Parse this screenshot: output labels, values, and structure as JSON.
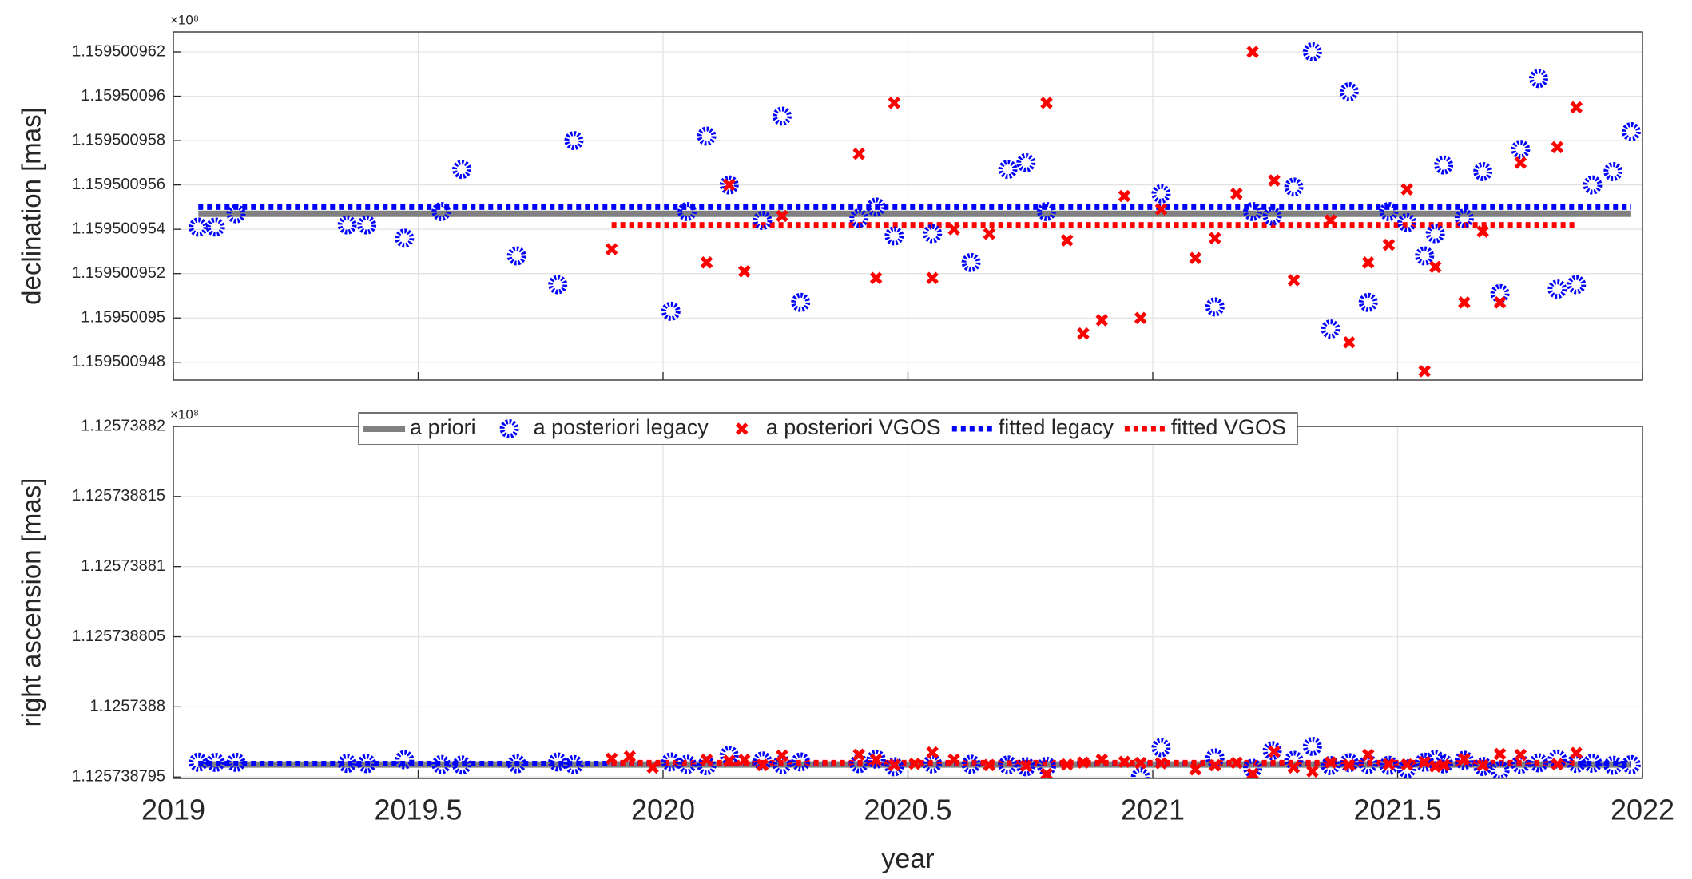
{
  "chart_data": [
    {
      "type": "scatter",
      "ylabel": "declination [mas]",
      "y_multiplier": "×10⁸",
      "xlim": [
        2019,
        2022
      ],
      "xticks": [
        2019,
        2019.5,
        2020,
        2020.5,
        2021,
        2021.5,
        2022
      ],
      "xtick_labels": false,
      "ylim": [
        1.1595009472,
        1.1595009629
      ],
      "yticks": [
        1.159500948,
        1.15950095,
        1.159500952,
        1.159500954,
        1.159500956,
        1.159500958,
        1.15950096,
        1.159500962
      ],
      "grid": true,
      "series": [
        {
          "color": "#808080",
          "mode": "line",
          "line_style": "solid",
          "x": [
            2019.051,
            2021.977
          ],
          "values": [
            1.1595009547,
            1.1595009547
          ]
        },
        {
          "color": "#0000ff",
          "mode": "markers",
          "marker": "asterisk",
          "x": [
            2019.051,
            2019.086,
            2019.128,
            2019.355,
            2019.395,
            2019.472,
            2019.547,
            2019.589,
            2019.701,
            2019.785,
            2019.818,
            2020.016,
            2020.049,
            2020.089,
            2020.135,
            2020.203,
            2020.243,
            2020.281,
            2020.4,
            2020.435,
            2020.472,
            2020.55,
            2020.629,
            2020.704,
            2020.741,
            2020.783,
            2021.017,
            2021.127,
            2021.204,
            2021.244,
            2021.288,
            2021.326,
            2021.363,
            2021.401,
            2021.44,
            2021.482,
            2021.519,
            2021.555,
            2021.577,
            2021.594,
            2021.636,
            2021.674,
            2021.709,
            2021.751,
            2021.788,
            2021.826,
            2021.865,
            2021.898,
            2021.94,
            2021.977
          ],
          "values": [
            1.1595009541,
            1.1595009541,
            1.1595009547,
            1.1595009542,
            1.1595009542,
            1.1595009536,
            1.1595009548,
            1.1595009567,
            1.1595009528,
            1.1595009515,
            1.159500958,
            1.1595009503,
            1.1595009548,
            1.1595009582,
            1.159500956,
            1.1595009544,
            1.1595009591,
            1.1595009507,
            1.1595009545,
            1.159500955,
            1.1595009537,
            1.1595009538,
            1.1595009525,
            1.1595009567,
            1.159500957,
            1.1595009548,
            1.1595009556,
            1.1595009505,
            1.1595009548,
            1.1595009546,
            1.1595009559,
            1.159500962,
            1.1595009495,
            1.1595009602,
            1.1595009507,
            1.1595009548,
            1.1595009543,
            1.1595009528,
            1.1595009538,
            1.1595009569,
            1.1595009545,
            1.1595009566,
            1.1595009511,
            1.1595009576,
            1.1595009608,
            1.1595009513,
            1.1595009515,
            1.159500956,
            1.1595009566,
            1.1595009584
          ]
        },
        {
          "color": "#ff0000",
          "mode": "markers",
          "marker": "x",
          "x": [
            2019.895,
            2020.089,
            2020.135,
            2020.166,
            2020.243,
            2020.4,
            2020.435,
            2020.472,
            2020.55,
            2020.594,
            2020.666,
            2020.783,
            2020.825,
            2020.858,
            2020.896,
            2020.942,
            2020.975,
            2021.017,
            2021.087,
            2021.127,
            2021.171,
            2021.204,
            2021.248,
            2021.288,
            2021.363,
            2021.401,
            2021.44,
            2021.482,
            2021.519,
            2021.555,
            2021.577,
            2021.636,
            2021.674,
            2021.709,
            2021.751,
            2021.826,
            2021.865
          ],
          "values": [
            1.1595009531,
            1.1595009525,
            1.159500956,
            1.1595009521,
            1.1595009546,
            1.1595009574,
            1.1595009518,
            1.1595009597,
            1.1595009518,
            1.159500954,
            1.1595009538,
            1.1595009597,
            1.1595009535,
            1.1595009493,
            1.1595009499,
            1.1595009555,
            1.15950095,
            1.1595009549,
            1.1595009527,
            1.1595009536,
            1.1595009556,
            1.159500962,
            1.1595009562,
            1.1595009517,
            1.1595009544,
            1.1595009489,
            1.1595009525,
            1.1595009533,
            1.1595009558,
            1.1595009476,
            1.1595009523,
            1.1595009507,
            1.1595009539,
            1.1595009507,
            1.159500957,
            1.1595009577,
            1.1595009595
          ]
        },
        {
          "color": "#0000ff",
          "mode": "line",
          "line_style": "dotted",
          "x": [
            2019.051,
            2021.977
          ],
          "values": [
            1.159500955,
            1.159500955
          ]
        },
        {
          "color": "#ff0000",
          "mode": "line",
          "line_style": "dotted",
          "x": [
            2019.895,
            2021.865
          ],
          "values": [
            1.1595009542,
            1.1595009542
          ]
        }
      ]
    },
    {
      "type": "scatter",
      "ylabel": "right ascension [mas]",
      "xlabel": "year",
      "y_multiplier": "×10⁸",
      "xlim": [
        2019,
        2022
      ],
      "xticks": [
        2019,
        2019.5,
        2020,
        2020.5,
        2021,
        2021.5,
        2022
      ],
      "xtick_labels": true,
      "ylim": [
        1.1257387949,
        1.12573882
      ],
      "yticks": [
        1.125738795,
        1.1257388,
        1.125738805,
        1.12573881,
        1.125738815,
        1.12573882
      ],
      "grid": true,
      "legend": "north",
      "series": [
        {
          "name": "a priori",
          "color": "#808080",
          "mode": "line",
          "line_style": "solid",
          "x": [
            2019.051,
            2021.977
          ],
          "values": [
            1.12573879589,
            1.12573879589
          ]
        },
        {
          "name": "a posteriori legacy",
          "color": "#0000ff",
          "mode": "markers",
          "marker": "asterisk",
          "x": [
            2019.051,
            2019.086,
            2019.128,
            2019.355,
            2019.395,
            2019.472,
            2019.547,
            2019.589,
            2019.701,
            2019.785,
            2019.818,
            2020.016,
            2020.049,
            2020.089,
            2020.135,
            2020.203,
            2020.243,
            2020.281,
            2020.4,
            2020.435,
            2020.472,
            2020.55,
            2020.629,
            2020.704,
            2020.741,
            2020.783,
            2020.975,
            2021.017,
            2021.127,
            2021.204,
            2021.244,
            2021.288,
            2021.326,
            2021.363,
            2021.401,
            2021.44,
            2021.482,
            2021.519,
            2021.555,
            2021.577,
            2021.594,
            2021.636,
            2021.674,
            2021.709,
            2021.751,
            2021.788,
            2021.826,
            2021.865,
            2021.898,
            2021.94,
            2021.977
          ],
          "values": [
            1.12573879605,
            1.12573879604,
            1.12573879604,
            1.12573879597,
            1.12573879595,
            1.12573879623,
            1.12573879589,
            1.12573879585,
            1.12573879594,
            1.12573879607,
            1.12573879588,
            1.12573879607,
            1.1257387959,
            1.1257387958,
            1.12573879655,
            1.12573879614,
            1.12573879589,
            1.12573879607,
            1.12573879595,
            1.12573879627,
            1.12573879573,
            1.12573879594,
            1.12573879591,
            1.12573879585,
            1.12573879573,
            1.12573879576,
            1.125738795,
            1.12573879709,
            1.12573879636,
            1.12573879562,
            1.12573879688,
            1.12573879619,
            1.12573879718,
            1.12573879581,
            1.12573879602,
            1.12573879591,
            1.12573879583,
            1.12573879559,
            1.12573879605,
            1.12573879624,
            1.12573879594,
            1.12573879619,
            1.12573879575,
            1.12573879546,
            1.1257387959,
            1.12573879601,
            1.12573879628,
            1.12573879597,
            1.12573879598,
            1.12573879583,
            1.12573879588
          ]
        },
        {
          "name": "a posteriori VGOS",
          "color": "#ff0000",
          "mode": "markers",
          "marker": "x",
          "x": [
            2019.895,
            2019.932,
            2019.979,
            2020.089,
            2020.135,
            2020.166,
            2020.203,
            2020.243,
            2020.4,
            2020.435,
            2020.472,
            2020.514,
            2020.55,
            2020.594,
            2020.666,
            2020.741,
            2020.783,
            2020.825,
            2020.858,
            2020.896,
            2020.942,
            2020.975,
            2021.017,
            2021.087,
            2021.127,
            2021.171,
            2021.204,
            2021.248,
            2021.288,
            2021.326,
            2021.363,
            2021.401,
            2021.44,
            2021.482,
            2021.519,
            2021.555,
            2021.577,
            2021.594,
            2021.636,
            2021.674,
            2021.709,
            2021.751,
            2021.826,
            2021.865
          ],
          "values": [
            1.1257387963,
            1.12573879646,
            1.12573879568,
            1.12573879622,
            1.12573879615,
            1.12573879622,
            1.12573879585,
            1.12573879652,
            1.12573879659,
            1.12573879623,
            1.12573879585,
            1.12573879594,
            1.12573879675,
            1.12573879623,
            1.12573879585,
            1.12573879579,
            1.12573879521,
            1.12573879589,
            1.12573879603,
            1.12573879623,
            1.12573879608,
            1.125738796,
            1.12573879598,
            1.12573879554,
            1.12573879583,
            1.12573879601,
            1.12573879522,
            1.1257387968,
            1.12573879568,
            1.1257387954,
            1.12573879603,
            1.12573879585,
            1.12573879657,
            1.12573879591,
            1.12573879589,
            1.12573879606,
            1.12573879575,
            1.12573879585,
            1.12573879627,
            1.12573879583,
            1.12573879664,
            1.12573879657,
            1.12573879591,
            1.12573879671
          ]
        },
        {
          "name": "fitted legacy",
          "color": "#0000ff",
          "mode": "line",
          "line_style": "dotted",
          "x": [
            2019.051,
            2021.977
          ],
          "values": [
            1.12573879595,
            1.12573879595
          ]
        },
        {
          "name": "fitted VGOS",
          "color": "#ff0000",
          "mode": "line",
          "line_style": "dotted",
          "x": [
            2019.895,
            2021.865
          ],
          "values": [
            1.12573879602,
            1.12573879602
          ]
        }
      ]
    }
  ]
}
